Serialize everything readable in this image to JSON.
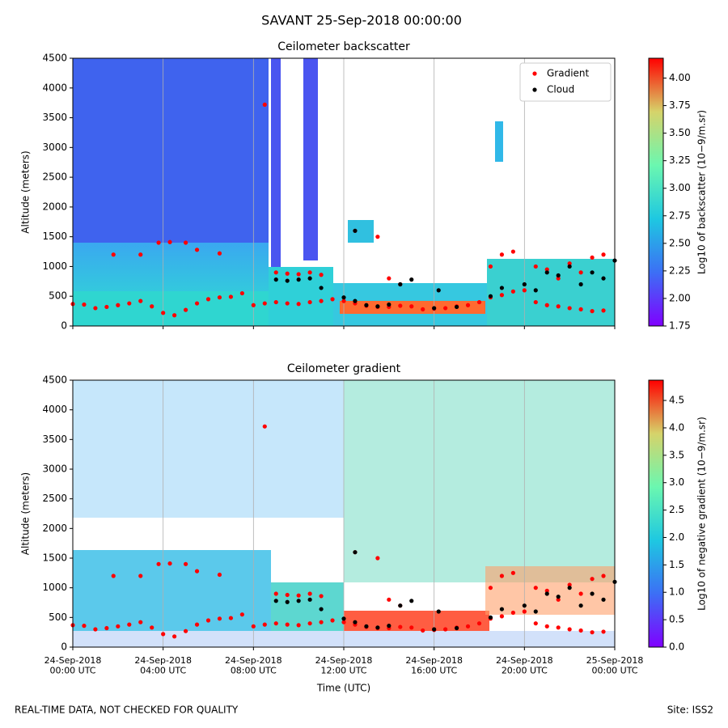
{
  "title": "SAVANT 25-Sep-2018 00:00:00",
  "footer": {
    "left": "REAL-TIME DATA, NOT CHECKED FOR QUALITY",
    "right": "Site: ISS2"
  },
  "chart_data": [
    {
      "type": "scatter",
      "title": "Ceilometer backscatter",
      "y_label": "Altitude (meters)",
      "xlim": [
        0,
        24
      ],
      "xticks": [
        {
          "value": 0,
          "label": "24-Sep-2018\n00:00 UTC"
        },
        {
          "value": 4,
          "label": "24-Sep-2018\n04:00 UTC"
        },
        {
          "value": 8,
          "label": "24-Sep-2018\n08:00 UTC"
        },
        {
          "value": 12,
          "label": "24-Sep-2018\n12:00 UTC"
        },
        {
          "value": 16,
          "label": "24-Sep-2018\n16:00 UTC"
        },
        {
          "value": 20,
          "label": "24-Sep-2018\n20:00 UTC"
        },
        {
          "value": 24,
          "label": "25-Sep-2018\n00:00 UTC"
        }
      ],
      "ylim": [
        0,
        4500
      ],
      "yticks": [
        0,
        500,
        1000,
        1500,
        2000,
        2500,
        3000,
        3500,
        4000,
        4500
      ],
      "grid": "x",
      "legend": "upper right",
      "colorbar": {
        "label": "Log10 of backscatter (10−9/m.sr)",
        "lim": [
          1.75,
          4.18
        ],
        "ticks": [
          {
            "value": 1.75,
            "label": "1.75"
          },
          {
            "value": 2,
            "label": "2.00"
          },
          {
            "value": 2.25,
            "label": "2.25"
          },
          {
            "value": 2.5,
            "label": "2.50"
          },
          {
            "value": 2.75,
            "label": "2.75"
          },
          {
            "value": 3,
            "label": "3.00"
          },
          {
            "value": 3.25,
            "label": "3.25"
          },
          {
            "value": 3.5,
            "label": "3.50"
          },
          {
            "value": 3.75,
            "label": "3.75"
          },
          {
            "value": 4,
            "label": "4.00"
          }
        ]
      },
      "series": [
        {
          "name": "Gradient",
          "color": "#ff0000",
          "x": [
            0,
            0.5,
            1,
            1.5,
            2,
            2.5,
            3,
            3.5,
            4,
            4.5,
            5,
            5.5,
            6,
            6.5,
            7,
            7.5,
            8,
            8.5,
            9,
            9.5,
            10,
            10.5,
            11,
            11.5,
            12,
            12.5,
            13,
            13.5,
            14,
            14.5,
            15,
            15.5,
            16,
            16.5,
            17,
            17.5,
            18,
            18.5,
            19,
            19.5,
            20,
            20.5,
            21,
            21.5,
            22,
            22.5,
            23,
            23.5,
            1.8,
            3,
            3.8,
            4.3,
            5,
            5.5,
            6.5,
            8.5,
            9,
            9.5,
            10,
            10.5,
            11,
            12.5,
            13.5,
            14,
            14.5,
            18.5,
            19,
            19.5,
            20.5,
            21,
            21.5,
            22,
            22.5,
            23,
            23.5
          ],
          "values": [
            370,
            360,
            300,
            320,
            350,
            380,
            420,
            330,
            220,
            180,
            270,
            380,
            450,
            480,
            490,
            550,
            350,
            380,
            400,
            380,
            370,
            400,
            420,
            450,
            420,
            380,
            340,
            320,
            320,
            340,
            330,
            280,
            290,
            300,
            330,
            350,
            400,
            480,
            520,
            580,
            600,
            400,
            350,
            330,
            300,
            280,
            250,
            260,
            1200,
            1200,
            1400,
            1410,
            1400,
            1280,
            1220,
            3720,
            900,
            880,
            870,
            900,
            860,
            1600,
            1500,
            800,
            700,
            1000,
            1200,
            1250,
            1000,
            950,
            800,
            1050,
            900,
            1150,
            1200
          ]
        },
        {
          "name": "Cloud",
          "color": "#000000",
          "x": [
            9,
            9.5,
            10,
            10.5,
            11,
            12,
            12.5,
            13,
            13.5,
            14,
            14.5,
            15,
            16,
            17,
            18.5,
            19,
            20,
            20.5,
            21,
            21.5,
            22,
            22.5,
            23,
            23.5,
            24,
            12.5,
            16.2
          ],
          "values": [
            780,
            760,
            780,
            800,
            640,
            480,
            420,
            350,
            330,
            360,
            700,
            780,
            300,
            320,
            500,
            640,
            700,
            600,
            900,
            850,
            1000,
            700,
            900,
            800,
            1100,
            1600,
            600
          ]
        }
      ]
    },
    {
      "type": "scatter",
      "title": "Ceilometer gradient",
      "y_label": "Altitude (meters)",
      "x_label": "Time (UTC)",
      "xlim": [
        0,
        24
      ],
      "xticks": [
        {
          "value": 0,
          "label": "24-Sep-2018\n00:00 UTC"
        },
        {
          "value": 4,
          "label": "24-Sep-2018\n04:00 UTC"
        },
        {
          "value": 8,
          "label": "24-Sep-2018\n08:00 UTC"
        },
        {
          "value": 12,
          "label": "24-Sep-2018\n12:00 UTC"
        },
        {
          "value": 16,
          "label": "24-Sep-2018\n16:00 UTC"
        },
        {
          "value": 20,
          "label": "24-Sep-2018\n20:00 UTC"
        },
        {
          "value": 24,
          "label": "25-Sep-2018\n00:00 UTC"
        }
      ],
      "ylim": [
        0,
        4500
      ],
      "yticks": [
        0,
        500,
        1000,
        1500,
        2000,
        2500,
        3000,
        3500,
        4000,
        4500
      ],
      "grid": "x",
      "colorbar": {
        "label": "Log10 of negative gradient (10−9/m.sr)",
        "lim": [
          0,
          4.87
        ],
        "ticks": [
          {
            "value": 0,
            "label": "0.0"
          },
          {
            "value": 0.5,
            "label": "0.5"
          },
          {
            "value": 1,
            "label": "1.0"
          },
          {
            "value": 1.5,
            "label": "1.5"
          },
          {
            "value": 2,
            "label": "2.0"
          },
          {
            "value": 2.5,
            "label": "2.5"
          },
          {
            "value": 3,
            "label": "3.0"
          },
          {
            "value": 3.5,
            "label": "3.5"
          },
          {
            "value": 4,
            "label": "4.0"
          },
          {
            "value": 4.5,
            "label": "4.5"
          }
        ]
      }
    }
  ]
}
